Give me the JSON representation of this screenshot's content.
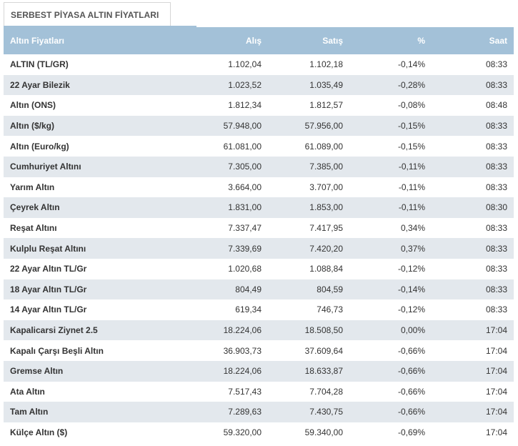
{
  "tab": {
    "title": "SERBEST PİYASA ALTIN FİYATLARI"
  },
  "table": {
    "headers": {
      "name": "Altın Fiyatları",
      "alis": "Alış",
      "satis": "Satış",
      "pct": "%",
      "saat": "Saat"
    },
    "rows": [
      {
        "name": "ALTIN (TL/GR)",
        "alis": "1.102,04",
        "satis": "1.102,18",
        "pct": "-0,14%",
        "saat": "08:33"
      },
      {
        "name": "22 Ayar Bilezik",
        "alis": "1.023,52",
        "satis": "1.035,49",
        "pct": "-0,28%",
        "saat": "08:33"
      },
      {
        "name": "Altın (ONS)",
        "alis": "1.812,34",
        "satis": "1.812,57",
        "pct": "-0,08%",
        "saat": "08:48"
      },
      {
        "name": "Altın ($/kg)",
        "alis": "57.948,00",
        "satis": "57.956,00",
        "pct": "-0,15%",
        "saat": "08:33"
      },
      {
        "name": "Altın (Euro/kg)",
        "alis": "61.081,00",
        "satis": "61.089,00",
        "pct": "-0,15%",
        "saat": "08:33"
      },
      {
        "name": "Cumhuriyet Altını",
        "alis": "7.305,00",
        "satis": "7.385,00",
        "pct": "-0,11%",
        "saat": "08:33"
      },
      {
        "name": "Yarım Altın",
        "alis": "3.664,00",
        "satis": "3.707,00",
        "pct": "-0,11%",
        "saat": "08:33"
      },
      {
        "name": "Çeyrek Altın",
        "alis": "1.831,00",
        "satis": "1.853,00",
        "pct": "-0,11%",
        "saat": "08:30"
      },
      {
        "name": "Reşat Altını",
        "alis": "7.337,47",
        "satis": "7.417,95",
        "pct": "0,34%",
        "saat": "08:33"
      },
      {
        "name": "Kulplu Reşat Altını",
        "alis": "7.339,69",
        "satis": "7.420,20",
        "pct": "0,37%",
        "saat": "08:33"
      },
      {
        "name": "22 Ayar Altın TL/Gr",
        "alis": "1.020,68",
        "satis": "1.088,84",
        "pct": "-0,12%",
        "saat": "08:33"
      },
      {
        "name": "18 Ayar Altın TL/Gr",
        "alis": "804,49",
        "satis": "804,59",
        "pct": "-0,14%",
        "saat": "08:33"
      },
      {
        "name": "14 Ayar Altın TL/Gr",
        "alis": "619,34",
        "satis": "746,73",
        "pct": "-0,12%",
        "saat": "08:33"
      },
      {
        "name": "Kapalicarsi Ziynet 2.5",
        "alis": "18.224,06",
        "satis": "18.508,50",
        "pct": "0,00%",
        "saat": "17:04"
      },
      {
        "name": "Kapalı Çarşı Beşli Altın",
        "alis": "36.903,73",
        "satis": "37.609,64",
        "pct": "-0,66%",
        "saat": "17:04"
      },
      {
        "name": "Gremse Altın",
        "alis": "18.224,06",
        "satis": "18.633,87",
        "pct": "-0,66%",
        "saat": "17:04"
      },
      {
        "name": "Ata Altın",
        "alis": "7.517,43",
        "satis": "7.704,28",
        "pct": "-0,66%",
        "saat": "17:04"
      },
      {
        "name": "Tam Altın",
        "alis": "7.289,63",
        "satis": "7.430,75",
        "pct": "-0,66%",
        "saat": "17:04"
      },
      {
        "name": "Külçe Altın ($)",
        "alis": "59.320,00",
        "satis": "59.340,00",
        "pct": "-0,69%",
        "saat": "17:04"
      }
    ]
  },
  "colors": {
    "header_bg": "#a3c1d8",
    "row_alt_bg": "#e3e8ed"
  }
}
